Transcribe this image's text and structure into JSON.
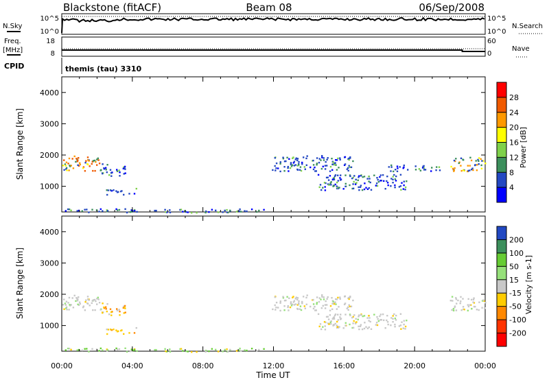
{
  "header": {
    "station": "Blackstone (fitACF)",
    "beam": "Beam 08",
    "date": "06/Sep/2008"
  },
  "status_panels": {
    "nsky": {
      "left_label": "N.Sky",
      "right_label": "N.Search",
      "left_ticks": [
        "10^5",
        "10^0"
      ],
      "right_ticks": [
        "10^5",
        "10^0"
      ]
    },
    "freq": {
      "left_label_1": "Freq.",
      "left_label_2": "[MHz]",
      "right_label": "Nave",
      "left_ticks": [
        "18",
        "8"
      ],
      "right_ticks": [
        "60",
        "0"
      ]
    },
    "cpid": {
      "label": "CPID",
      "program": "themis (tau) 3310"
    }
  },
  "power_colorbar": {
    "label": "Power [dB]",
    "ticks": [
      "28",
      "24",
      "20",
      "16",
      "12",
      "8",
      "4"
    ],
    "colors": [
      "#ff0000",
      "#f05a00",
      "#ff9900",
      "#ffff00",
      "#7fd14a",
      "#3c8f5c",
      "#2348c2",
      "#0000ff"
    ]
  },
  "velocity_colorbar": {
    "label": "Velocity [m s-1]",
    "ticks": [
      "200",
      "100",
      "50",
      "15",
      "-15",
      "-50",
      "-100",
      "-200"
    ],
    "colors": [
      "#2148c2",
      "#3c8f5c",
      "#66cc33",
      "#96e07a",
      "#c8c8c8",
      "#ffcc00",
      "#ff8800",
      "#ff3300",
      "#ff0000"
    ]
  },
  "chart_data": [
    {
      "type": "heatmap",
      "panel": "power",
      "title": "Beam 08",
      "ylabel": "Slant Range [km]",
      "xlabel": "",
      "x_ticks": [
        "00:00",
        "04:00",
        "08:00",
        "12:00",
        "16:00",
        "20:00",
        "00:00"
      ],
      "y_ticks": [
        "1000",
        "2000",
        "3000",
        "4000"
      ],
      "xlim": [
        0,
        24
      ],
      "ylim": [
        180,
        4500
      ],
      "regions": [
        {
          "t": [
            0.0,
            2.2
          ],
          "r": [
            1500,
            2000
          ],
          "level": "16-28"
        },
        {
          "t": [
            2.2,
            3.6
          ],
          "r": [
            1350,
            1750
          ],
          "level": "4-12"
        },
        {
          "t": [
            2.5,
            4.2
          ],
          "r": [
            750,
            950
          ],
          "level": "4-12"
        },
        {
          "t": [
            0.0,
            11.5
          ],
          "r": [
            180,
            300
          ],
          "level": "4-12"
        },
        {
          "t": [
            11.9,
            16.5
          ],
          "r": [
            1500,
            2000
          ],
          "level": "4-12"
        },
        {
          "t": [
            14.5,
            19.5
          ],
          "r": [
            900,
            1400
          ],
          "level": "4-12"
        },
        {
          "t": [
            18.5,
            21.5
          ],
          "r": [
            1500,
            1700
          ],
          "level": "4-12"
        },
        {
          "t": [
            22.0,
            24.0
          ],
          "r": [
            1500,
            1950
          ],
          "level": "12-24"
        }
      ]
    },
    {
      "type": "heatmap",
      "panel": "velocity",
      "ylabel": "Slant Range [km]",
      "xlabel": "Time UT",
      "x_ticks": [
        "00:00",
        "04:00",
        "08:00",
        "12:00",
        "16:00",
        "20:00",
        "00:00"
      ],
      "y_ticks": [
        "1000",
        "2000",
        "3000",
        "4000"
      ],
      "xlim": [
        0,
        24
      ],
      "ylim": [
        180,
        4500
      ],
      "regions": [
        {
          "t": [
            0.0,
            2.2
          ],
          "r": [
            1500,
            2000
          ],
          "level": "-15-15"
        },
        {
          "t": [
            2.2,
            3.6
          ],
          "r": [
            1350,
            1750
          ],
          "level": "-50--15"
        },
        {
          "t": [
            2.5,
            4.2
          ],
          "r": [
            750,
            950
          ],
          "level": "-50--15"
        },
        {
          "t": [
            0.0,
            11.5
          ],
          "r": [
            180,
            300
          ],
          "level": "15-50"
        },
        {
          "t": [
            11.9,
            16.5
          ],
          "r": [
            1500,
            2000
          ],
          "level": "-15-15"
        },
        {
          "t": [
            14.5,
            19.5
          ],
          "r": [
            900,
            1400
          ],
          "level": "-15-15"
        },
        {
          "t": [
            22.0,
            24.0
          ],
          "r": [
            1500,
            1950
          ],
          "level": "-15-15"
        }
      ]
    }
  ]
}
